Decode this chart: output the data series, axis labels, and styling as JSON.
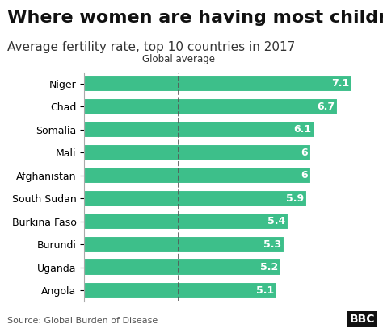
{
  "title": "Where women are having most children",
  "subtitle": "Average fertility rate, top 10 countries in 2017",
  "countries": [
    "Niger",
    "Chad",
    "Somalia",
    "Mali",
    "Afghanistan",
    "South Sudan",
    "Burkina Faso",
    "Burundi",
    "Uganda",
    "Angola"
  ],
  "values": [
    7.1,
    6.7,
    6.1,
    6.0,
    6.0,
    5.9,
    5.4,
    5.3,
    5.2,
    5.1
  ],
  "bar_color": "#3dbf8a",
  "label_color": "#ffffff",
  "global_average": 2.5,
  "global_average_label": "Global average",
  "xlim": [
    0,
    7.6
  ],
  "source_text": "Source: Global Burden of Disease",
  "bbc_text": "BBC",
  "background_color": "#ffffff",
  "title_fontsize": 16,
  "subtitle_fontsize": 11,
  "bar_label_fontsize": 9,
  "axis_label_fontsize": 9,
  "source_fontsize": 8
}
